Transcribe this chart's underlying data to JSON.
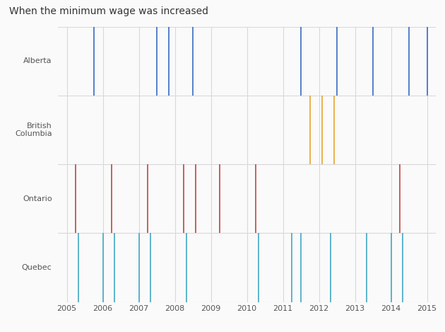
{
  "title": "When the minimum wage was increased",
  "provinces": [
    "Alberta",
    "British\nColumbia",
    "Ontario",
    "Quebec"
  ],
  "colors": {
    "Alberta": "#4472C4",
    "British\nColumbia": "#E8A838",
    "Ontario": "#C0504D",
    "Quebec": "#4BACC6"
  },
  "events": {
    "Alberta": [
      2005.75,
      2007.5,
      2007.83,
      2008.5,
      2011.5,
      2012.5,
      2013.5,
      2014.5,
      2015.0
    ],
    "British\nColumbia": [
      2011.75,
      2012.08,
      2012.42
    ],
    "Ontario": [
      2005.25,
      2006.25,
      2007.25,
      2008.25,
      2008.58,
      2009.25,
      2010.25,
      2014.25
    ],
    "Quebec": [
      2005.33,
      2006.0,
      2006.33,
      2007.0,
      2007.33,
      2008.33,
      2010.33,
      2011.25,
      2011.5,
      2012.33,
      2013.33,
      2014.0,
      2014.33
    ]
  },
  "xlim": [
    2004.75,
    2015.25
  ],
  "xticks": [
    2005,
    2006,
    2007,
    2008,
    2009,
    2010,
    2011,
    2012,
    2013,
    2014,
    2015
  ],
  "background_color": "#FAFAFA",
  "grid_color": "#D8D8D8",
  "title_fontsize": 10,
  "label_fontsize": 8
}
